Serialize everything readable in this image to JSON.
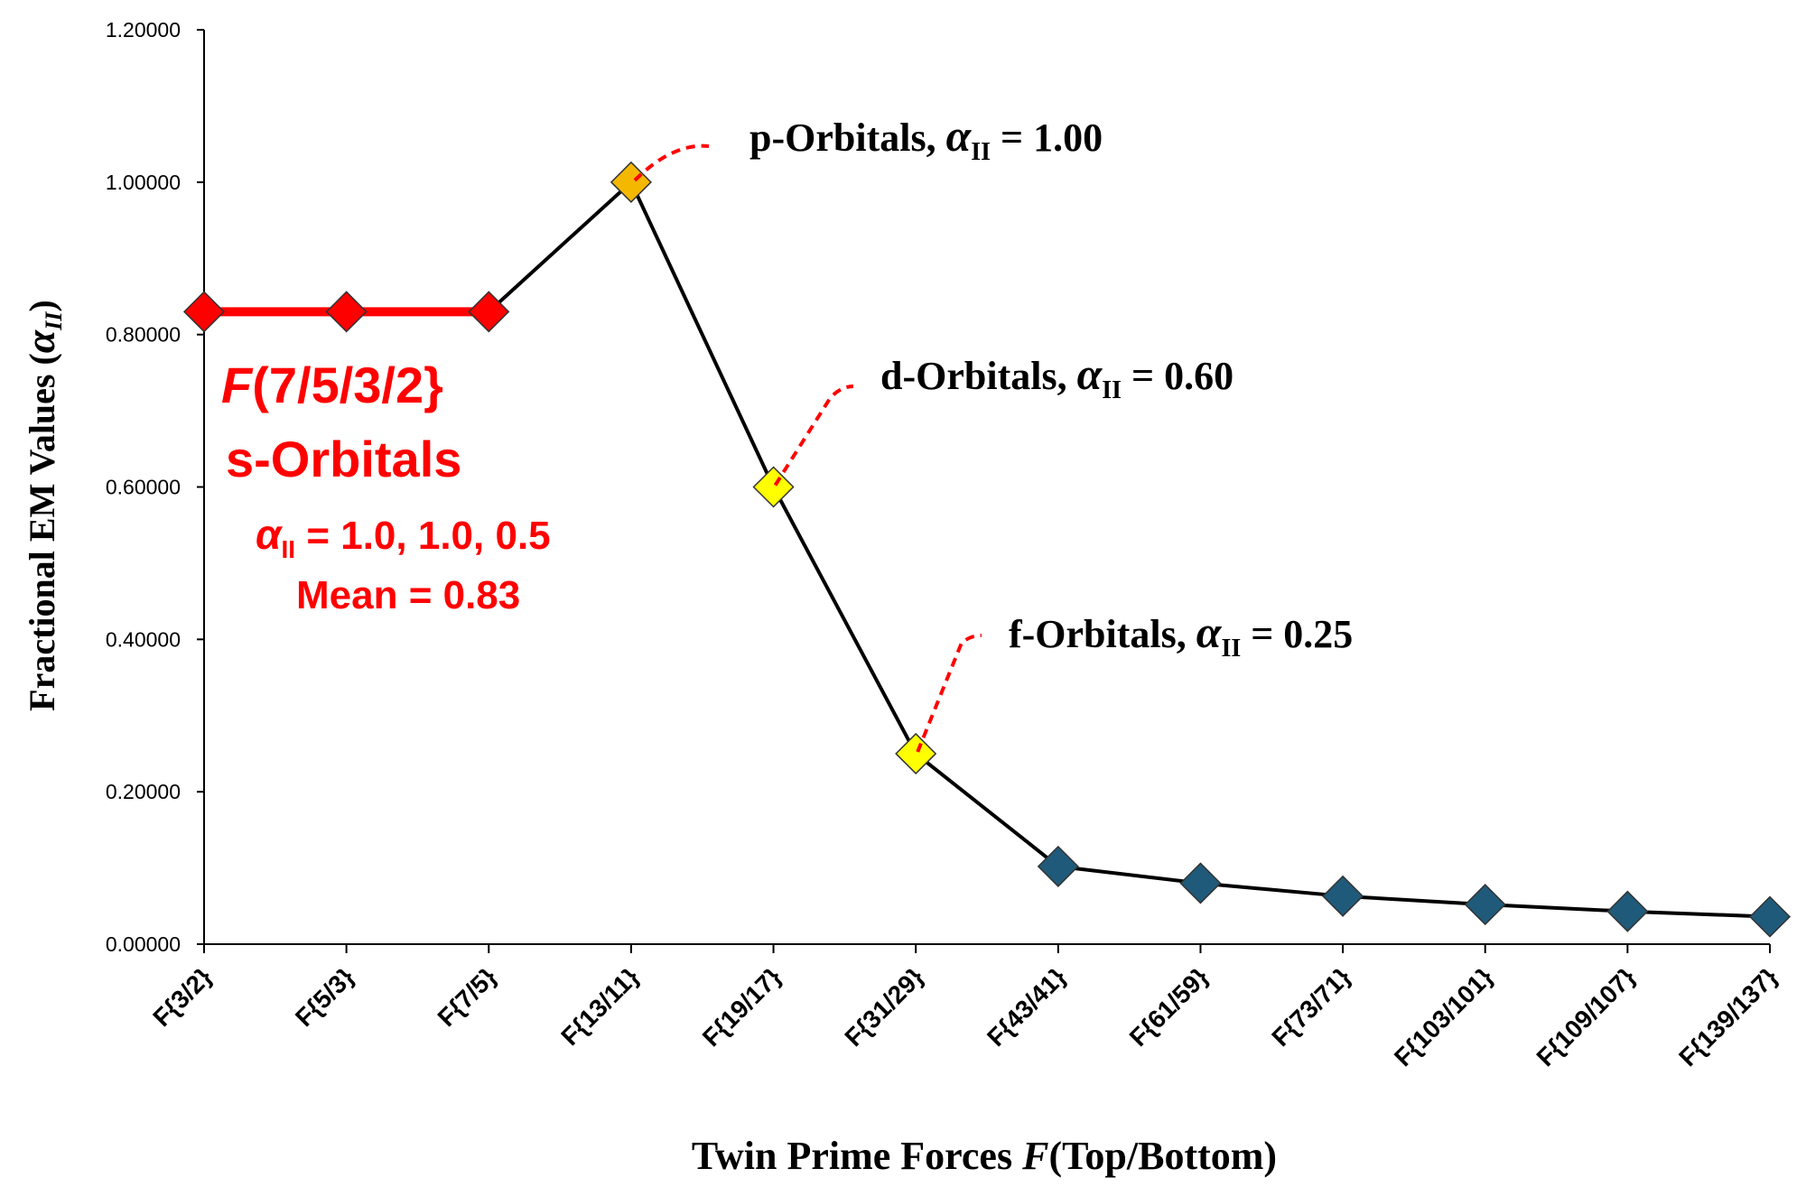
{
  "chart_data": {
    "type": "line",
    "title": "",
    "xlabel_prefix": "Twin Prime Forces ",
    "xlabel_italic": "F",
    "xlabel_suffix": "(Top/Bottom)",
    "ylabel_prefix": "Fractional EM Values (",
    "ylabel_symbol": "α",
    "ylabel_subscript": "II",
    "ylabel_suffix": ")",
    "ylim": [
      0,
      1.2
    ],
    "yticks": [
      "0.00000",
      "0.20000",
      "0.40000",
      "0.60000",
      "0.80000",
      "1.00000",
      "1.20000"
    ],
    "categories": [
      "F{3/2}",
      "F{5/3}",
      "F{7/5}",
      "F{13/11}",
      "F{19/17}",
      "F{31/29}",
      "F{43/41}",
      "F{61/59}",
      "F{73/71}",
      "F{103/101}",
      "F{109/107}",
      "F{139/137}"
    ],
    "values": [
      0.83,
      0.83,
      0.83,
      1.0,
      0.6,
      0.25,
      0.102,
      0.08,
      0.063,
      0.052,
      0.043,
      0.036
    ],
    "marker_colors": [
      "#ff0000",
      "#ff0000",
      "#ff0000",
      "#f5b800",
      "#ffff00",
      "#ffff00",
      "#1f5a7a",
      "#1f5a7a",
      "#1f5a7a",
      "#1f5a7a",
      "#1f5a7a",
      "#1f5a7a"
    ],
    "line_color": "#000000",
    "highlight_color": "#ff0000",
    "grid": false,
    "legend": "none",
    "annotations": {
      "p": {
        "prefix": "p-Orbitals, ",
        "symbol": "α",
        "sub": "II",
        "suffix": " =  1.00"
      },
      "d": {
        "prefix": "d-Orbitals, ",
        "symbol": "α",
        "sub": "II",
        "suffix": " =  0.60"
      },
      "f": {
        "prefix": "f-Orbitals, ",
        "symbol": "α",
        "sub": "II",
        "suffix": " =  0.25"
      },
      "s_line1_italic": "F",
      "s_line1_rest": "(7/5/3/2}",
      "s_line2": "s-Orbitals",
      "s_line3_symbol": "α",
      "s_line3_sub": "II",
      "s_line3_rest": " = 1.0, 1.0, 0.5",
      "s_line4": "Mean = 0.83"
    }
  }
}
